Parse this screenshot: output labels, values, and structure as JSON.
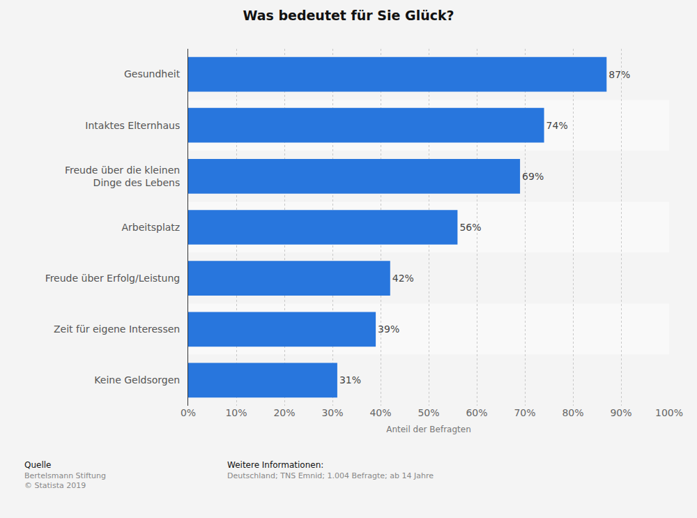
{
  "chart_data": {
    "type": "bar",
    "title": "Was bedeutet für Sie Glück?",
    "orientation": "horizontal",
    "categories": [
      "Gesundheit",
      "Intaktes Elternhaus",
      "Freude über die kleinen\nDinge des Lebens",
      "Arbeitsplatz",
      "Freude über Erfolg/Leistung",
      "Zeit für eigene Interessen",
      "Keine Geldsorgen"
    ],
    "values": [
      87,
      74,
      69,
      56,
      42,
      39,
      31
    ],
    "value_labels": [
      "87%",
      "74%",
      "69%",
      "56%",
      "42%",
      "39%",
      "31%"
    ],
    "data_labels": true,
    "color": "#2876dd",
    "xlabel": "Anteil der Befragten",
    "xlim": [
      0,
      100
    ],
    "xticks": [
      {
        "value": 0,
        "label": "0%"
      },
      {
        "value": 10,
        "label": "10%"
      },
      {
        "value": 20,
        "label": "20%"
      },
      {
        "value": 30,
        "label": "30%"
      },
      {
        "value": 40,
        "label": "40%"
      },
      {
        "value": 50,
        "label": "50%"
      },
      {
        "value": 60,
        "label": "60%"
      },
      {
        "value": 70,
        "label": "70%"
      },
      {
        "value": 80,
        "label": "80%"
      },
      {
        "value": 90,
        "label": "90%"
      },
      {
        "value": 100,
        "label": "100%"
      }
    ],
    "grid": true,
    "footer": {
      "source_label": "Quelle",
      "source": [
        "Bertelsmann Stiftung",
        "© Statista 2019"
      ],
      "info_label": "Weitere Informationen:",
      "info": "Deutschland; TNS Emnid; 1.004 Befragte; ab 14 Jahre"
    }
  }
}
